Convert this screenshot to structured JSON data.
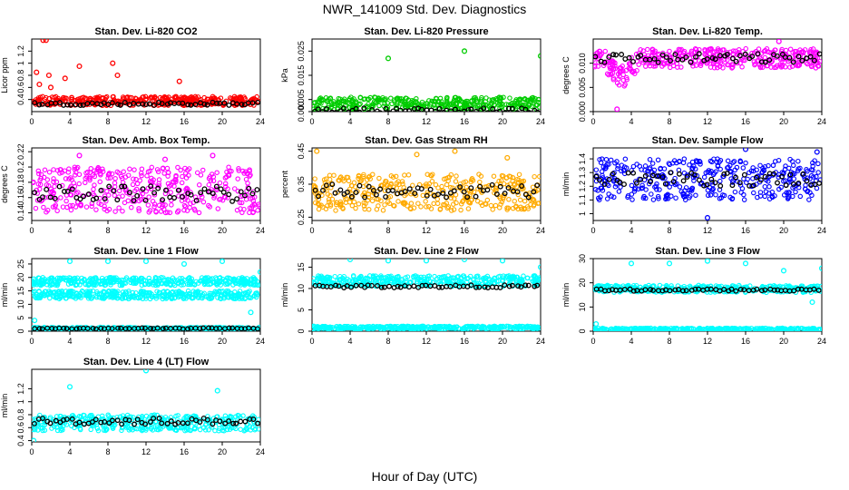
{
  "figure": {
    "title": "NWR_141009 Std. Dev. Diagnostics",
    "xlabel": "Hour of Day (UTC)"
  },
  "chart_data": [
    {
      "type": "scatter",
      "title": "Stan. Dev. Li-820 CO2",
      "ylabel": "Licor ppm",
      "color": "#ff0000",
      "x_ticks": [
        0,
        4,
        8,
        12,
        16,
        20,
        24
      ],
      "xlim": [
        0,
        24
      ],
      "y_ticks": [
        0.4,
        0.6,
        0.8,
        1.0,
        1.2
      ],
      "ylim": [
        0.2,
        1.4
      ],
      "band": [
        0.3,
        0.45
      ],
      "black_level": 0.33,
      "black_spread": 0.05,
      "outliers": [
        [
          1.2,
          1.38
        ],
        [
          1.5,
          1.38
        ],
        [
          0.5,
          0.85
        ],
        [
          1.8,
          0.8
        ],
        [
          3.5,
          0.75
        ],
        [
          5,
          0.95
        ],
        [
          8.5,
          1.0
        ],
        [
          9,
          0.8
        ],
        [
          15.5,
          0.7
        ],
        [
          0.8,
          0.65
        ],
        [
          2,
          0.6
        ]
      ]
    },
    {
      "type": "scatter",
      "title": "Stan. Dev. Li-820 Pressure",
      "ylabel": "kPa",
      "color": "#00cc00",
      "x_ticks": [
        0,
        4,
        8,
        12,
        16,
        20,
        24
      ],
      "xlim": [
        0,
        24
      ],
      "y_ticks": [
        0.0,
        0.005,
        0.015,
        0.025
      ],
      "y_tick_labels": [
        "0.000",
        "0.005",
        "0.015",
        "0.025"
      ],
      "ylim": [
        0,
        0.03
      ],
      "band": [
        0.001,
        0.006
      ],
      "black_level": 0.0005,
      "black_spread": 0.002,
      "outliers": [
        [
          8,
          0.022
        ],
        [
          16,
          0.025
        ],
        [
          24,
          0.023
        ]
      ]
    },
    {
      "type": "scatter",
      "title": "Stan. Dev. Li-820 Temp.",
      "ylabel": "degrees C",
      "color": "#ff00ff",
      "x_ticks": [
        0,
        4,
        8,
        12,
        16,
        20,
        24
      ],
      "xlim": [
        0,
        24
      ],
      "y_ticks": [
        0.0,
        0.005,
        0.01
      ],
      "y_tick_labels": [
        "0.000",
        "0.005",
        "0.010"
      ],
      "ylim": [
        0,
        0.015
      ],
      "band": [
        0.009,
        0.013
      ],
      "black_level": 0.011,
      "black_spread": 0.002,
      "dip": [
        1,
        5,
        0.006
      ],
      "outliers": [
        [
          2.5,
          0.0005
        ],
        [
          19.5,
          0.0145
        ]
      ]
    },
    {
      "type": "scatter",
      "title": "Stan. Dev. Amb. Box Temp.",
      "ylabel": "degrees C",
      "color": "#ff00ff",
      "x_ticks": [
        0,
        4,
        8,
        12,
        16,
        20,
        24
      ],
      "xlim": [
        0,
        24
      ],
      "y_ticks": [
        0.14,
        0.16,
        0.18,
        0.2,
        0.22
      ],
      "ylim": [
        0.13,
        0.225
      ],
      "band": [
        0.14,
        0.2
      ],
      "black_level": 0.165,
      "black_spread": 0.02,
      "outliers": [
        [
          5,
          0.215
        ],
        [
          14,
          0.21
        ],
        [
          19,
          0.215
        ]
      ]
    },
    {
      "type": "scatter",
      "title": "Stan. Dev. Gas Stream RH",
      "ylabel": "percent",
      "color": "#ffaa00",
      "x_ticks": [
        0,
        4,
        8,
        12,
        16,
        20,
        24
      ],
      "xlim": [
        0,
        24
      ],
      "y_ticks": [
        0.25,
        0.35,
        0.45
      ],
      "ylim": [
        0.24,
        0.46
      ],
      "band": [
        0.27,
        0.38
      ],
      "black_level": 0.33,
      "black_spread": 0.04,
      "outliers": [
        [
          0.5,
          0.45
        ],
        [
          11,
          0.44
        ],
        [
          15,
          0.45
        ],
        [
          20.5,
          0.43
        ]
      ]
    },
    {
      "type": "scatter",
      "title": "Stan. Dev. Sample Flow",
      "ylabel": "ml/min",
      "color": "#0000ff",
      "x_ticks": [
        0,
        4,
        8,
        12,
        16,
        20,
        24
      ],
      "xlim": [
        0,
        24
      ],
      "y_ticks": [
        1.0,
        1.1,
        1.2,
        1.3,
        1.4
      ],
      "ylim": [
        0.95,
        1.48
      ],
      "band": [
        1.1,
        1.4
      ],
      "black_level": 1.25,
      "black_spread": 0.1,
      "outliers": [
        [
          16,
          1.47
        ],
        [
          23.5,
          1.45
        ],
        [
          12,
          0.97
        ]
      ]
    },
    {
      "type": "scatter",
      "title": "Stan. Dev. Line 1 Flow",
      "ylabel": "ml/min",
      "color": "#00ffff",
      "x_ticks": [
        0,
        4,
        8,
        12,
        16,
        20,
        24
      ],
      "xlim": [
        0,
        24
      ],
      "y_ticks": [
        0,
        5,
        10,
        15,
        20,
        25
      ],
      "ylim": [
        0,
        27
      ],
      "bands": [
        [
          17,
          20
        ],
        [
          12,
          15
        ],
        [
          0.5,
          1.5
        ]
      ],
      "black_level": 1.0,
      "black_spread": 0.4,
      "outliers": [
        [
          0.3,
          4
        ],
        [
          4,
          26
        ],
        [
          8,
          26
        ],
        [
          12,
          26
        ],
        [
          16,
          25
        ],
        [
          20,
          26
        ],
        [
          24,
          22
        ],
        [
          23,
          7
        ]
      ]
    },
    {
      "type": "scatter",
      "title": "Stan. Dev. Line 2 Flow",
      "ylabel": "ml/min",
      "color": "#00ffff",
      "x_ticks": [
        0,
        4,
        8,
        12,
        16,
        20,
        24
      ],
      "xlim": [
        0,
        24
      ],
      "y_ticks": [
        0,
        5,
        10,
        15
      ],
      "ylim": [
        0,
        17
      ],
      "bands": [
        [
          10.5,
          13
        ],
        [
          0.5,
          1.2
        ]
      ],
      "black_level": 10.5,
      "black_spread": 0.6,
      "outliers": [
        [
          4,
          16.8
        ],
        [
          8,
          16.5
        ],
        [
          12,
          16.5
        ],
        [
          16,
          16.8
        ],
        [
          20,
          16.5
        ],
        [
          24,
          15
        ]
      ]
    },
    {
      "type": "scatter",
      "title": "Stan. Dev. Line 3 Flow",
      "ylabel": "ml/min",
      "color": "#00ffff",
      "x_ticks": [
        0,
        4,
        8,
        12,
        16,
        20,
        24
      ],
      "xlim": [
        0,
        24
      ],
      "y_ticks": [
        0,
        10,
        20,
        30
      ],
      "ylim": [
        0,
        30
      ],
      "bands": [
        [
          16,
          19
        ],
        [
          0.3,
          1.3
        ]
      ],
      "black_level": 17,
      "black_spread": 0.8,
      "outliers": [
        [
          0.3,
          3
        ],
        [
          4,
          28
        ],
        [
          8,
          28
        ],
        [
          12,
          29
        ],
        [
          16,
          28
        ],
        [
          20,
          25
        ],
        [
          24,
          26
        ],
        [
          23,
          12
        ]
      ]
    },
    {
      "type": "scatter",
      "title": "Stan. Dev. Line 4 (LT) Flow",
      "ylabel": "ml/min",
      "color": "#00ffff",
      "x_ticks": [
        0,
        4,
        8,
        12,
        16,
        20,
        24
      ],
      "xlim": [
        0,
        24
      ],
      "y_ticks": [
        0.4,
        0.6,
        0.8,
        1.0,
        1.2
      ],
      "ylim": [
        0.38,
        1.5
      ],
      "band": [
        0.55,
        0.8
      ],
      "black_level": 0.7,
      "black_spread": 0.1,
      "outliers": [
        [
          12,
          1.48
        ],
        [
          4,
          1.23
        ],
        [
          19.5,
          1.17
        ],
        [
          0.2,
          0.4
        ]
      ]
    }
  ]
}
